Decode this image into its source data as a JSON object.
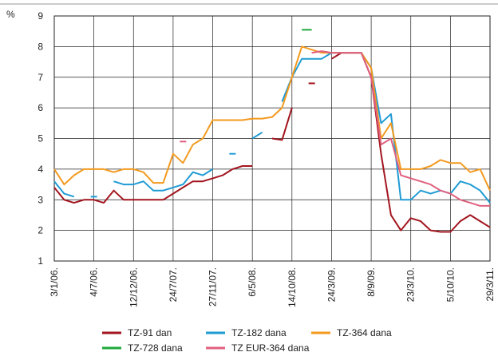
{
  "chart_data": {
    "type": "line",
    "y_label": "%",
    "x": [
      0,
      0.25,
      0.5,
      0.75,
      1,
      1.25,
      1.5,
      1.75,
      2,
      2.25,
      2.5,
      2.75,
      3,
      3.25,
      3.5,
      3.75,
      4,
      4.25,
      4.5,
      4.75,
      5,
      5.25,
      5.5,
      5.75,
      6,
      6.25,
      6.5,
      6.75,
      7,
      7.25,
      7.5,
      7.75,
      8,
      8.25,
      8.5,
      8.75,
      9,
      9.25,
      9.5,
      9.75,
      10,
      10.25,
      10.5,
      10.75,
      11
    ],
    "xlim": [
      0,
      11
    ],
    "xticks": [
      {
        "value": 0,
        "label": "3/1/06."
      },
      {
        "value": 1,
        "label": "4/7/06."
      },
      {
        "value": 2,
        "label": "12/12/06."
      },
      {
        "value": 3,
        "label": "24/7/07."
      },
      {
        "value": 4,
        "label": "27/11/07."
      },
      {
        "value": 5,
        "label": "6/5/08."
      },
      {
        "value": 6,
        "label": "14/10/08."
      },
      {
        "value": 7,
        "label": "24/3/09."
      },
      {
        "value": 8,
        "label": "8/9/09."
      },
      {
        "value": 9,
        "label": "23/3/10."
      },
      {
        "value": 10,
        "label": "5/10/10."
      },
      {
        "value": 11,
        "label": "29/3/11."
      }
    ],
    "ylim": [
      1,
      9
    ],
    "yticks": [
      1,
      2,
      3,
      4,
      5,
      6,
      7,
      8,
      9
    ],
    "grid": true,
    "series": [
      {
        "name": "TZ-91 dan",
        "color": "#a3151f",
        "values": [
          3.4,
          3.0,
          2.9,
          3.0,
          3.0,
          2.9,
          3.3,
          3.0,
          3.0,
          3.0,
          3.0,
          3.0,
          3.2,
          3.4,
          3.6,
          3.6,
          3.7,
          3.8,
          4.0,
          4.1,
          4.1,
          null,
          5.0,
          4.95,
          6.0,
          null,
          6.8,
          null,
          7.6,
          7.8,
          7.8,
          7.8,
          7.0,
          4.5,
          2.5,
          2.0,
          2.4,
          2.3,
          2.0,
          1.95,
          1.95,
          2.3,
          2.5,
          2.3,
          2.1
        ]
      },
      {
        "name": "TZ-182 dana",
        "color": "#1f9bd4",
        "values": [
          3.6,
          3.2,
          3.1,
          null,
          3.1,
          null,
          3.6,
          3.5,
          3.5,
          3.6,
          3.3,
          3.3,
          3.4,
          3.5,
          3.9,
          3.8,
          4.0,
          null,
          4.5,
          null,
          5.0,
          5.2,
          null,
          6.2,
          7.0,
          7.6,
          7.6,
          7.6,
          7.8,
          7.8,
          7.8,
          7.8,
          7.3,
          5.5,
          5.8,
          3.0,
          3.0,
          3.3,
          3.2,
          3.3,
          3.2,
          3.6,
          3.5,
          3.3,
          2.9
        ]
      },
      {
        "name": "TZ-364 dana",
        "color": "#f39a1e",
        "values": [
          4.0,
          3.5,
          3.8,
          4.0,
          4.0,
          4.0,
          3.9,
          4.0,
          4.0,
          3.9,
          3.55,
          3.55,
          4.5,
          4.2,
          4.8,
          5.0,
          5.6,
          5.6,
          5.6,
          5.6,
          5.65,
          5.65,
          5.7,
          6.0,
          7.0,
          8.0,
          7.9,
          7.8,
          7.8,
          7.8,
          7.8,
          7.8,
          7.3,
          5.0,
          5.5,
          4.0,
          4.0,
          4.0,
          4.1,
          4.3,
          4.2,
          4.2,
          3.9,
          4.0,
          3.3
        ]
      },
      {
        "name": "TZ-728 dana",
        "color": "#1fa83a",
        "values": [
          null,
          null,
          null,
          null,
          null,
          null,
          null,
          null,
          null,
          null,
          null,
          null,
          null,
          null,
          null,
          null,
          null,
          null,
          null,
          null,
          null,
          null,
          null,
          null,
          null,
          8.55,
          8.55,
          null,
          null,
          null,
          null,
          null,
          null,
          null,
          null,
          null,
          null,
          null,
          null,
          null,
          null,
          null,
          null,
          null,
          null
        ]
      },
      {
        "name": "TZ EUR-364 dana",
        "color": "#e0607e",
        "values": [
          null,
          null,
          null,
          null,
          null,
          null,
          null,
          null,
          null,
          null,
          null,
          null,
          null,
          4.9,
          null,
          null,
          null,
          null,
          null,
          null,
          null,
          null,
          null,
          null,
          null,
          null,
          7.8,
          7.85,
          7.8,
          7.8,
          7.8,
          7.8,
          7.0,
          4.8,
          5.0,
          3.8,
          3.7,
          3.6,
          3.5,
          3.3,
          3.2,
          3.0,
          2.9,
          2.8,
          2.8
        ]
      }
    ]
  }
}
